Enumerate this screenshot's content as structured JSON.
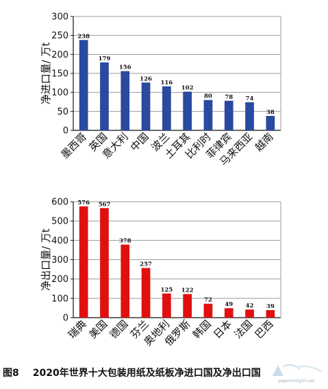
{
  "chart_data": [
    {
      "type": "bar",
      "ylabel": "净进口量/ 万t",
      "ylim": [
        0,
        300
      ],
      "yticks": [
        0,
        50,
        100,
        150,
        200,
        250,
        300
      ],
      "categories": [
        "墨西哥",
        "英国",
        "意大利",
        "中国",
        "波兰",
        "土耳其",
        "比利时",
        "菲律宾",
        "马来西亚",
        "越南"
      ],
      "values": [
        238,
        179,
        156,
        126,
        116,
        102,
        80,
        78,
        74,
        38
      ],
      "bar_color": "#2a4aa0",
      "grid": "horizontal"
    },
    {
      "type": "bar",
      "ylabel": "净出口量/ 万t",
      "ylim": [
        0,
        600
      ],
      "yticks": [
        0,
        100,
        200,
        300,
        400,
        500,
        600
      ],
      "categories": [
        "瑞典",
        "美国",
        "德国",
        "芬兰",
        "奥地利",
        "俄罗斯",
        "韩国",
        "日本",
        "法国",
        "巴西"
      ],
      "values": [
        576,
        567,
        378,
        257,
        125,
        122,
        72,
        49,
        42,
        39
      ],
      "bar_color": "#e01010",
      "grid": "horizontal"
    }
  ],
  "caption": {
    "figure_number": "图8",
    "text": "2020年世界十大包装用纸及纸板净进口国及净出口国"
  },
  "watermark": {
    "text": "paperinsight.net"
  }
}
